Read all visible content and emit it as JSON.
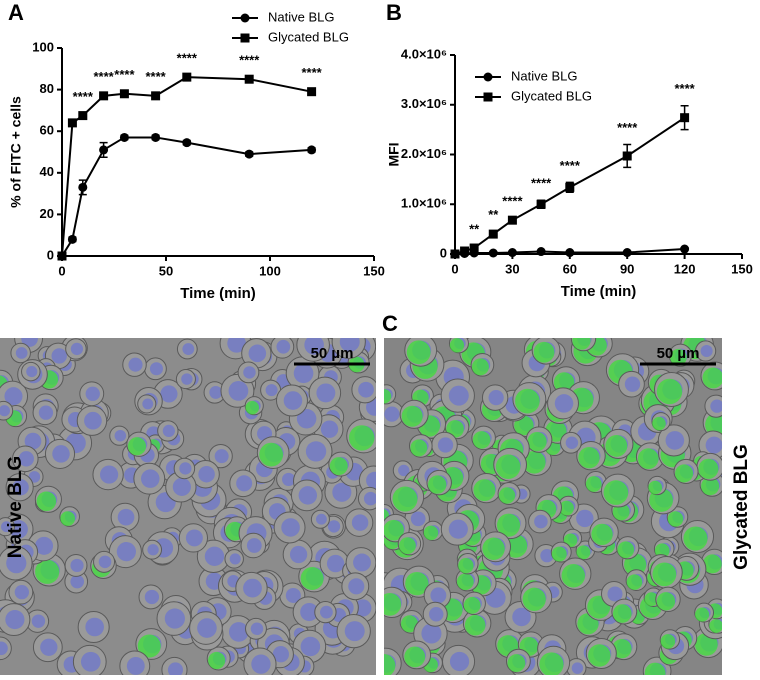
{
  "chart_data": [
    {
      "type": "line",
      "panel": "A",
      "xlabel": "Time (min)",
      "ylabel": "% of FITC + cells",
      "x": [
        0,
        5,
        10,
        20,
        30,
        45,
        60,
        90,
        120
      ],
      "xlim": [
        0,
        150
      ],
      "xticks": [
        0,
        50,
        100,
        150
      ],
      "ylim": [
        0,
        100
      ],
      "yticks": [
        0,
        20,
        40,
        60,
        80,
        100
      ],
      "legend": "upper-right",
      "series": [
        {
          "name": "Native BLG",
          "color": "#000000",
          "marker": "circle",
          "values": [
            0,
            8,
            33,
            51,
            57,
            57,
            54.5,
            49,
            51
          ],
          "errors": [
            0,
            1,
            3.5,
            3.5,
            1,
            1,
            1,
            1,
            1
          ]
        },
        {
          "name": "Glycated BLG",
          "color": "#000000",
          "marker": "square",
          "values": [
            0,
            64,
            67.5,
            77,
            78,
            77,
            86,
            85,
            79
          ],
          "errors": [
            0,
            1,
            1,
            1,
            1,
            1,
            1,
            1,
            1
          ]
        }
      ],
      "annotations": [
        {
          "x": 10,
          "text": "****"
        },
        {
          "x": 20,
          "text": "****"
        },
        {
          "x": 30,
          "text": "****"
        },
        {
          "x": 45,
          "text": "****"
        },
        {
          "x": 60,
          "text": "****"
        },
        {
          "x": 90,
          "text": "****"
        },
        {
          "x": 120,
          "text": "****"
        }
      ]
    },
    {
      "type": "line",
      "panel": "B",
      "xlabel": "Time (min)",
      "ylabel": "MFI",
      "x": [
        0,
        5,
        10,
        20,
        30,
        45,
        60,
        90,
        120
      ],
      "xlim": [
        0,
        150
      ],
      "xticks": [
        0,
        30,
        60,
        90,
        120,
        150
      ],
      "ylim": [
        0,
        4000000
      ],
      "yticks": [
        0,
        {
          "value": 1000000,
          "label": "1.0×10⁶"
        },
        {
          "value": 2000000,
          "label": "2.0×10⁶"
        },
        {
          "value": 3000000,
          "label": "3.0×10⁶"
        },
        {
          "value": 4000000,
          "label": "4.0×10⁶"
        }
      ],
      "legend": "upper-left",
      "series": [
        {
          "name": "Native BLG",
          "color": "#000000",
          "marker": "circle",
          "values": [
            0,
            10000,
            20000,
            20000,
            30000,
            50000,
            30000,
            30000,
            100000
          ],
          "errors": [
            0,
            5000,
            5000,
            5000,
            5000,
            10000,
            10000,
            10000,
            20000
          ]
        },
        {
          "name": "Glycated BLG",
          "color": "#000000",
          "marker": "square",
          "values": [
            0,
            60000,
            120000,
            400000,
            680000,
            1000000,
            1340000,
            1970000,
            2740000
          ],
          "errors": [
            0,
            30000,
            40000,
            50000,
            40000,
            80000,
            100000,
            230000,
            240000
          ]
        }
      ],
      "annotations": [
        {
          "x": 10,
          "text": "**"
        },
        {
          "x": 20,
          "text": "**"
        },
        {
          "x": 30,
          "text": "****"
        },
        {
          "x": 45,
          "text": "****"
        },
        {
          "x": 60,
          "text": "****"
        },
        {
          "x": 90,
          "text": "****"
        },
        {
          "x": 120,
          "text": "****"
        }
      ]
    }
  ],
  "images": {
    "panel": "C",
    "scale_bar": "50 µm",
    "left_label": "Native BLG",
    "right_label": "Glycated BLG"
  }
}
